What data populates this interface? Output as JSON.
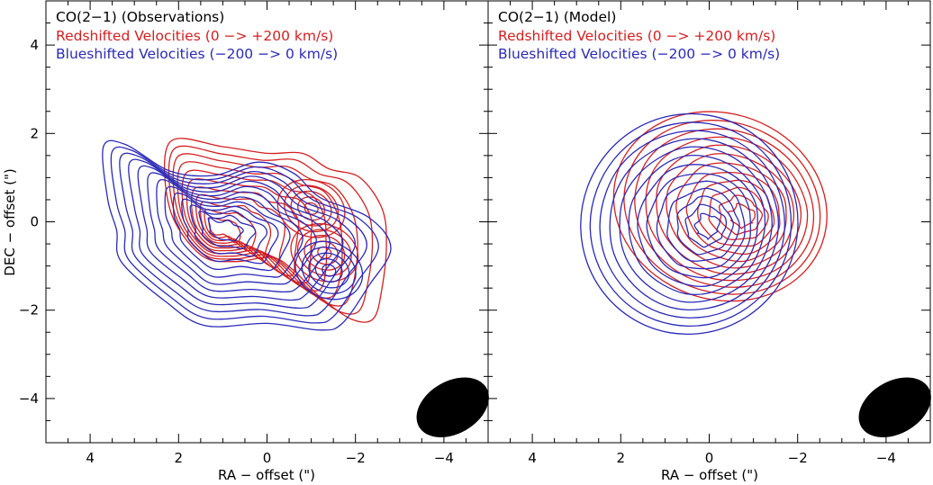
{
  "figure": {
    "xlabel": "RA − offset (\")",
    "ylabel": "DEC − offset (\")"
  },
  "colors": {
    "red": "#d42020",
    "blue": "#2a2ab8",
    "axis": "#000000"
  },
  "chart_data": [
    {
      "type": "contour",
      "title": "CO(2−1) (Observations)",
      "legend": [
        {
          "label": "Redshifted Velocities (0 −> +200 km/s)",
          "color": "#d42020"
        },
        {
          "label": "Blueshifted Velocities (−200 −> 0 km/s)",
          "color": "#2a2ab8"
        }
      ],
      "xlabel": "RA − offset (\")",
      "ylabel": "DEC − offset (\")",
      "xlim": [
        5,
        -5
      ],
      "ylim": [
        -5,
        5
      ],
      "xticks": [
        4,
        2,
        0,
        -2,
        -4
      ],
      "yticks": [
        4,
        2,
        0,
        -2,
        -4
      ],
      "xtick_labels": [
        "4",
        "2",
        "0",
        "−2",
        "−4"
      ],
      "ytick_labels": [
        "4",
        "2",
        "0",
        "−2",
        "−4"
      ],
      "beam": {
        "ra": -4.2,
        "dec": -4.2,
        "major": 0.95,
        "minor": 0.8,
        "pa": 30
      },
      "series": [
        {
          "name": "Redshifted",
          "color": "#d42020",
          "n_levels": 11,
          "peaks": [
            {
              "ra": 1.15,
              "dec": -0.2
            },
            {
              "ra": -1.3,
              "dec": -0.7
            },
            {
              "ra": -1.0,
              "dec": 0.3
            }
          ],
          "envelope": [
            [
              2.2,
              1.8
            ],
            [
              1.0,
              1.7
            ],
            [
              0,
              1.55
            ],
            [
              -0.8,
              1.55
            ],
            [
              -1.4,
              1.2
            ],
            [
              -2.1,
              1.0
            ],
            [
              -2.6,
              0.3
            ],
            [
              -2.7,
              -0.5
            ],
            [
              -2.6,
              -1.5
            ],
            [
              -2.4,
              -2.2
            ],
            [
              -1.9,
              -2.2
            ],
            [
              -1.2,
              -1.7
            ],
            [
              -0.6,
              -1.1
            ],
            [
              -0.1,
              -0.8
            ],
            [
              0.7,
              -0.9
            ],
            [
              1.5,
              -0.75
            ],
            [
              2.2,
              0.3
            ]
          ]
        },
        {
          "name": "Blueshifted",
          "color": "#2a2ab8",
          "n_levels": 13,
          "peaks": [
            {
              "ra": 1.0,
              "dec": -0.15
            },
            {
              "ra": -1.4,
              "dec": -1.1
            }
          ],
          "envelope": [
            [
              3.7,
              1.7
            ],
            [
              3.2,
              1.75
            ],
            [
              2.2,
              1.15
            ],
            [
              1.2,
              1.05
            ],
            [
              0.2,
              1.35
            ],
            [
              -0.6,
              1.1
            ],
            [
              -1.2,
              0.55
            ],
            [
              -2.3,
              0.1
            ],
            [
              -2.8,
              -0.6
            ],
            [
              -2.3,
              -1.45
            ],
            [
              -1.7,
              -2.3
            ],
            [
              -1.2,
              -2.45
            ],
            [
              0,
              -2.3
            ],
            [
              1.4,
              -2.35
            ],
            [
              2.3,
              -1.8
            ],
            [
              3.3,
              -0.9
            ],
            [
              3.4,
              -0.2
            ],
            [
              3.6,
              0.5
            ]
          ]
        }
      ]
    },
    {
      "type": "contour",
      "title": "CO(2−1) (Model)",
      "legend": [
        {
          "label": "Redshifted Velocities (0 −> +200 km/s)",
          "color": "#d42020"
        },
        {
          "label": "Blueshifted Velocities (−200 −> 0 km/s)",
          "color": "#2a2ab8"
        }
      ],
      "xlabel": "RA − offset (\")",
      "ylabel": "",
      "xlim": [
        5,
        -5
      ],
      "ylim": [
        -5,
        5
      ],
      "xticks": [
        4,
        2,
        0,
        -2,
        -4
      ],
      "yticks": [
        4,
        2,
        0,
        -2,
        -4
      ],
      "xtick_labels": [
        "4",
        "2",
        "0",
        "−2",
        "−4"
      ],
      "ytick_labels": [],
      "beam": {
        "ra": -4.2,
        "dec": -4.2,
        "major": 0.95,
        "minor": 0.8,
        "pa": 30
      },
      "series": [
        {
          "name": "Redshifted",
          "color": "#d42020",
          "n_levels": 12,
          "center": {
            "ra": -0.25,
            "dec": 0.35
          },
          "outer_radii": [
            2.45,
            2.1
          ],
          "peak": {
            "ra": -0.8,
            "dec": 0.1
          }
        },
        {
          "name": "Blueshifted",
          "color": "#2a2ab8",
          "n_levels": 13,
          "center": {
            "ra": 0.45,
            "dec": -0.05
          },
          "outer_radii": [
            2.45,
            2.5
          ],
          "peak": {
            "ra": 0.0,
            "dec": -0.1
          }
        }
      ]
    }
  ]
}
